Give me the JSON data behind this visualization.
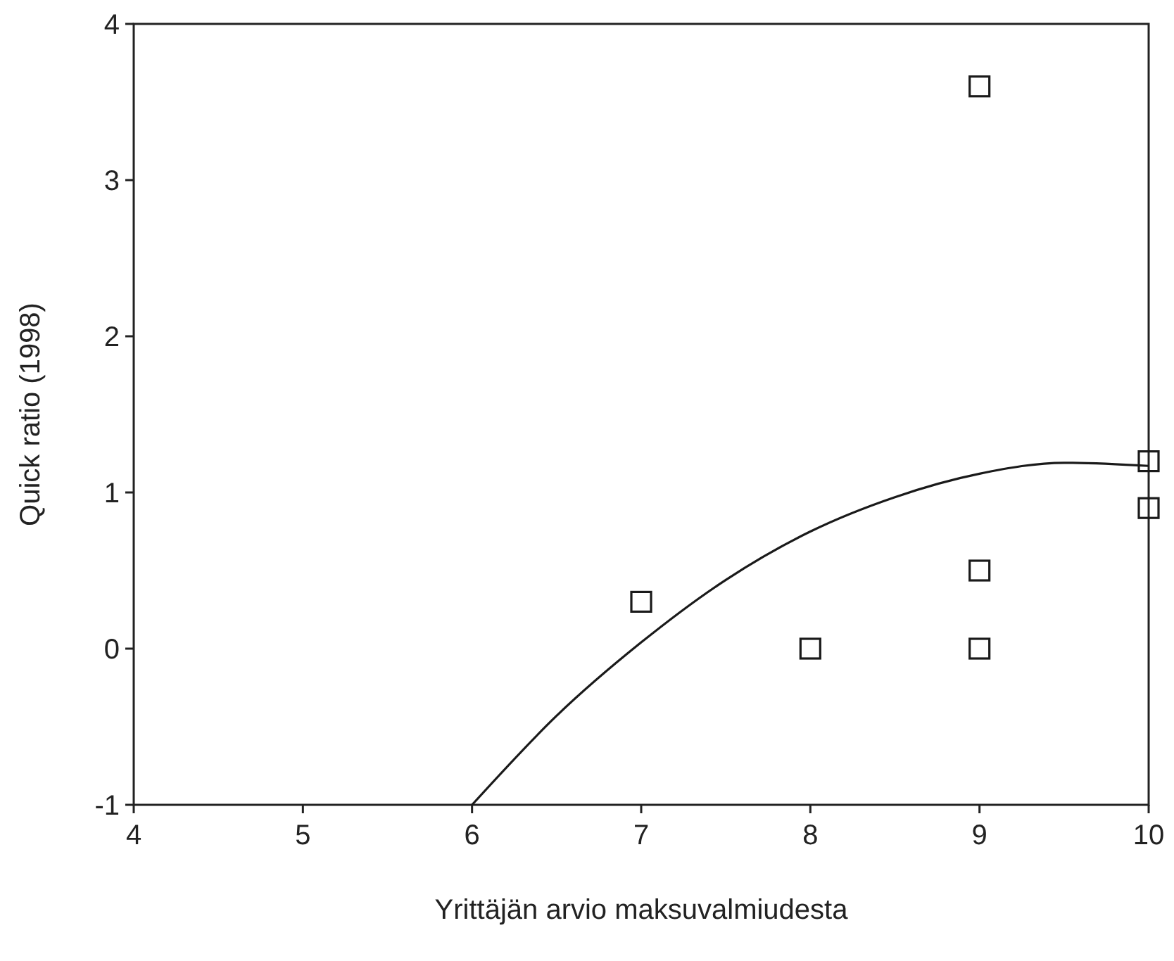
{
  "chart_data": {
    "type": "scatter",
    "xlabel": "Yrittäjän arvio maksuvalmiudesta",
    "ylabel": "Quick ratio (1998)",
    "xlim": [
      4,
      10
    ],
    "ylim": [
      -1,
      4
    ],
    "xticks": [
      4,
      5,
      6,
      7,
      8,
      9,
      10
    ],
    "yticks": [
      -1,
      0,
      1,
      2,
      3,
      4
    ],
    "grid": false,
    "series": [
      {
        "marker": "square",
        "color": "#1a1a1a",
        "x": [
          7,
          8,
          9,
          9,
          9,
          10,
          10
        ],
        "values": [
          0.3,
          0,
          0,
          0.5,
          3.6,
          1.2,
          0.9
        ]
      },
      {
        "type": "line",
        "marker": "none",
        "line_style": "solid",
        "color": "#1a1a1a",
        "x": [
          6,
          6.5,
          7,
          7.5,
          8,
          8.5,
          9,
          9.5,
          10
        ],
        "values": [
          -1,
          -0.43,
          0.04,
          0.44,
          0.75,
          0.97,
          1.12,
          1.19,
          1.17
        ]
      }
    ]
  }
}
